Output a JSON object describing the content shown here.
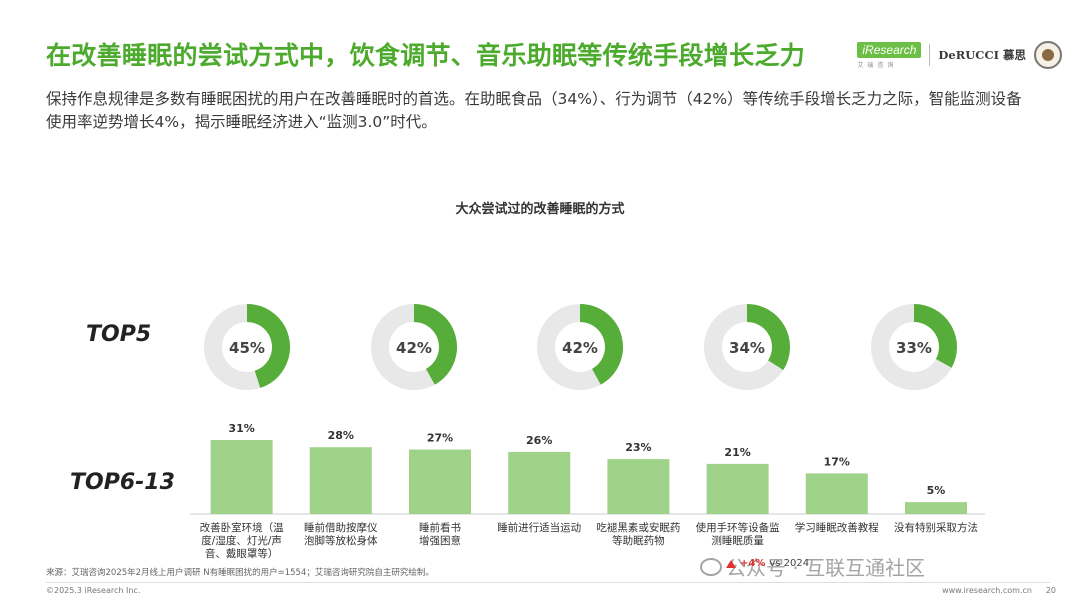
{
  "header": {
    "title": "在改善睡眠的尝试方式中，饮食调节、音乐助眠等传统手段增长乏力",
    "subtitle": "保持作息规律是多数有睡眠困扰的用户在改善睡眠时的首选。在助眠食品（34%）、行为调节（42%）等传统手段增长乏力之际，智能监测设备使用率逆势增长4%，揭示睡眠经济进入“监测3.0”时代。"
  },
  "logos": {
    "iresearch": "iResearch",
    "iresearch_sub": "艾瑞咨询",
    "derucci": "DeRUCCI 慕思"
  },
  "colors": {
    "title_green": "#4caa2c",
    "donut_fill": "#56ad3a",
    "donut_track": "#e8e8e8",
    "bar_fill": "#9fd38a",
    "axis": "#cccccc"
  },
  "chart_data": {
    "type": "bar",
    "title": "大众尝试过的改善睡眠的方式",
    "top5_label": "TOP5",
    "top6_label": "TOP6-13",
    "top5": [
      {
        "value": 45,
        "label": "45%"
      },
      {
        "value": 42,
        "label": "42%"
      },
      {
        "value": 42,
        "label": "42%"
      },
      {
        "value": 34,
        "label": "34%"
      },
      {
        "value": 33,
        "label": "33%"
      }
    ],
    "categories": [
      "改善卧室环境（温度/湿度、灯光/声音、戴眼罩等）",
      "睡前借助按摩仪泡脚等放松身体",
      "睡前看书增强困意",
      "睡前进行适当运动",
      "吃褪黑素或安眠药等助眠药物",
      "使用手环等设备监测睡眠质量",
      "学习睡眠改善教程",
      "没有特别采取方法"
    ],
    "category_lines": [
      [
        "改善卧室环境（温",
        "度/湿度、灯光/声",
        "音、戴眼罩等）"
      ],
      [
        "睡前借助按摩仪",
        "泡脚等放松身体"
      ],
      [
        "睡前看书",
        "增强困意"
      ],
      [
        "睡前进行适当运动"
      ],
      [
        "吃褪黑素或安眠药",
        "等助眠药物"
      ],
      [
        "使用手环等设备监",
        "测睡眠质量"
      ],
      [
        "学习睡眠改善教程"
      ],
      [
        "没有特别采取方法"
      ]
    ],
    "values": [
      31,
      28,
      27,
      26,
      23,
      21,
      17,
      5
    ],
    "value_labels": [
      "31%",
      "28%",
      "27%",
      "26%",
      "23%",
      "21%",
      "17%",
      "5%"
    ],
    "ylim": [
      0,
      31
    ]
  },
  "callout": {
    "value": "+4%",
    "text": "vs 2024"
  },
  "footer": {
    "source": "来源：艾瑞咨询2025年2月线上用户调研 N有睡眠困扰的用户=1554；艾瑞咨询研究院自主研究绘制。",
    "copyright": "©2025.3 iResearch Inc.",
    "website": "www.iresearch.com.cn",
    "page": "20"
  },
  "watermark": {
    "text": "公众号 · 互联互通社区"
  }
}
